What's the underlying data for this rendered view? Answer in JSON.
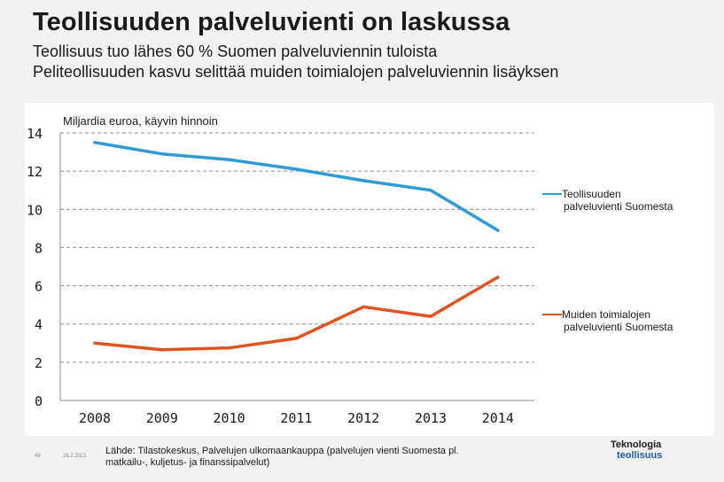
{
  "header": {
    "title": "Teollisuuden palveluvienti on laskussa",
    "subtitle_1": "Teollisuus tuo lähes 60 % Suomen palveluviennin tuloista",
    "subtitle_2": "Peliteollisuuden kasvu selittää muiden toimialojen palveluviennin lisäyksen"
  },
  "chart_data": {
    "type": "line",
    "title": "",
    "unit_label": "Miljardia euroa, käyvin hinnoin",
    "categories": [
      "2008",
      "2009",
      "2010",
      "2011",
      "2012",
      "2013",
      "2014"
    ],
    "ylim": [
      0,
      14
    ],
    "yticks": [
      0,
      2,
      4,
      6,
      8,
      10,
      12,
      14
    ],
    "grid": true,
    "legend": "right, next to series ends",
    "series": [
      {
        "name": "Teollisuuden palveluvienti Suomesta",
        "legend_lines": [
          "Teollisuuden",
          "palveluvienti Suomesta"
        ],
        "color": "#2e9bd6",
        "values": [
          13.5,
          12.9,
          12.6,
          12.1,
          11.5,
          11.0,
          8.9
        ]
      },
      {
        "name": "Muiden toimialojen palveluvienti Suomesta",
        "legend_lines": [
          "Muiden toimialojen",
          "palveluvienti Suomesta"
        ],
        "color": "#e0531f",
        "values": [
          3.0,
          2.65,
          2.75,
          3.25,
          4.9,
          4.4,
          6.45
        ]
      }
    ]
  },
  "footer": {
    "page_number": "48",
    "date": "28.2.2021",
    "source": "Lähde: Tilastokeskus, Palvelujen ulkomaankauppa (palvelujen vienti Suomesta pl. matkailu-, kuljetus- ja finanssipalvelut)",
    "logo_line_1": "Teknologia",
    "logo_line_2": "teollisuus"
  }
}
